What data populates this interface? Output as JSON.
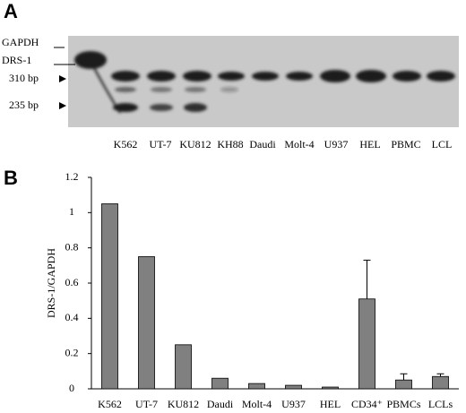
{
  "panel_a": {
    "panel_label": "A",
    "marker_labels": [
      "GAPDH",
      "DRS-1",
      "310 bp",
      "235 bp"
    ],
    "lanes": [
      "K562",
      "UT-7",
      "KU812",
      "KH88",
      "Daudi",
      "Molt-4",
      "U937",
      "HEL",
      "PBMC",
      "LCL"
    ]
  },
  "chart_data": {
    "type": "bar",
    "panel_label": "B",
    "y_label": "DRS-1/GAPDH",
    "categories": [
      "K562",
      "UT-7",
      "KU812",
      "Daudi",
      "Molt-4",
      "U937",
      "HEL",
      "CD34⁺",
      "PBMCs",
      "LCLs"
    ],
    "values": [
      1.05,
      0.75,
      0.25,
      0.06,
      0.03,
      0.02,
      0.01,
      0.51,
      0.05,
      0.07
    ],
    "errors": [
      null,
      null,
      null,
      null,
      null,
      null,
      null,
      0.22,
      0.035,
      0.015
    ],
    "color": "#808080",
    "ylim": [
      0,
      1.2
    ],
    "yticks": [
      0,
      0.2,
      0.4,
      0.6,
      0.8,
      1,
      1.2
    ]
  }
}
